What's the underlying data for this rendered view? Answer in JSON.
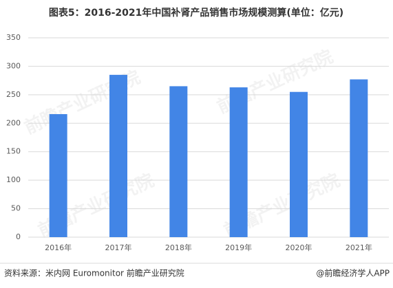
{
  "chart_data": {
    "type": "bar",
    "title": "图表5：2016-2021年中国补肾产品销售市场规模测算(单位：亿元)",
    "categories": [
      "2016年",
      "2017年",
      "2018年",
      "2019年",
      "2020年",
      "2021年"
    ],
    "values": [
      216,
      285,
      265,
      263,
      255,
      277
    ],
    "color": "#4285e6",
    "ylim": [
      0,
      350
    ],
    "yticks": [
      0,
      50,
      100,
      150,
      200,
      250,
      300,
      350
    ],
    "grid": true,
    "source": "资料来源：米内网 Euromonitor 前瞻产业研究院",
    "credit": "@前瞻经济学人APP",
    "watermark": "前瞻产业研究院"
  }
}
